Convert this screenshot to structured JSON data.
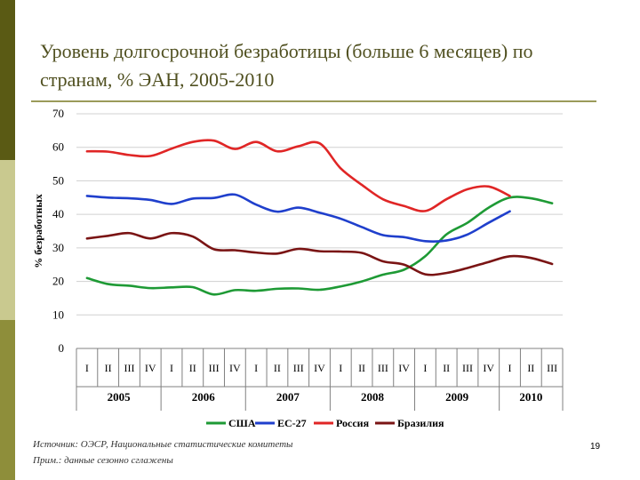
{
  "slide": {
    "title": "Уровень долгосрочной безработицы (больше 6 месяцев) по странам, % ЭАН, 2005-2010",
    "source": "Источник: ОЭСР, Национальные статистические комитеты",
    "note": "Прим.: данные сезонно сглажены",
    "page_number": "19"
  },
  "chart_data": {
    "type": "line",
    "title": "",
    "ylabel": "% безработных",
    "xlabel": "",
    "ylim": [
      0,
      70
    ],
    "yticks": [
      0,
      10,
      20,
      30,
      40,
      50,
      60,
      70
    ],
    "grid": true,
    "legend_position": "bottom",
    "x": [
      "2005 I",
      "2005 II",
      "2005 III",
      "2005 IV",
      "2006 I",
      "2006 II",
      "2006 III",
      "2006 IV",
      "2007 I",
      "2007 II",
      "2007 III",
      "2007 IV",
      "2008 I",
      "2008 II",
      "2008 III",
      "2008 IV",
      "2009 I",
      "2009 II",
      "2009 III",
      "2009 IV",
      "2010 I",
      "2010 II",
      "2010 III"
    ],
    "quarter_labels": [
      "I",
      "II",
      "III",
      "IV",
      "I",
      "II",
      "III",
      "IV",
      "I",
      "II",
      "III",
      "IV",
      "I",
      "II",
      "III",
      "IV",
      "I",
      "II",
      "III",
      "IV",
      "I",
      "II",
      "III"
    ],
    "years": [
      "2005",
      "2006",
      "2007",
      "2008",
      "2009",
      "2010"
    ],
    "series": [
      {
        "name": "США",
        "color": "#1e9a35",
        "values": [
          21,
          19.2,
          18.7,
          18,
          18.2,
          18.3,
          16.1,
          17.4,
          17.2,
          17.8,
          17.9,
          17.5,
          18.5,
          20,
          22,
          23.5,
          27.5,
          34,
          37.5,
          42,
          45,
          44.8,
          43.3
        ]
      },
      {
        "name": "ЕС-27",
        "color": "#1f3fcc",
        "values": [
          45.5,
          45,
          44.8,
          44.3,
          43.1,
          44.7,
          44.9,
          45.9,
          42.9,
          40.8,
          42,
          40.5,
          38.7,
          36.2,
          33.8,
          33.2,
          32,
          32.2,
          34,
          37.5,
          40.9,
          null,
          null
        ]
      },
      {
        "name": "Россия",
        "color": "#e02626",
        "values": [
          58.8,
          58.7,
          57.7,
          57.4,
          59.6,
          61.6,
          62,
          59.5,
          61.6,
          58.8,
          60.3,
          61.2,
          53.7,
          48.8,
          44.5,
          42.5,
          41,
          44.5,
          47.5,
          48.3,
          45.5,
          null,
          null
        ]
      },
      {
        "name": "Бразилия",
        "color": "#7a1414",
        "values": [
          32.8,
          33.6,
          34.4,
          32.8,
          34.4,
          33.4,
          29.6,
          29.3,
          28.6,
          28.3,
          29.7,
          29,
          28.9,
          28.5,
          26,
          25,
          22.1,
          22.5,
          24,
          25.8,
          27.5,
          27,
          25.2
        ]
      }
    ]
  }
}
